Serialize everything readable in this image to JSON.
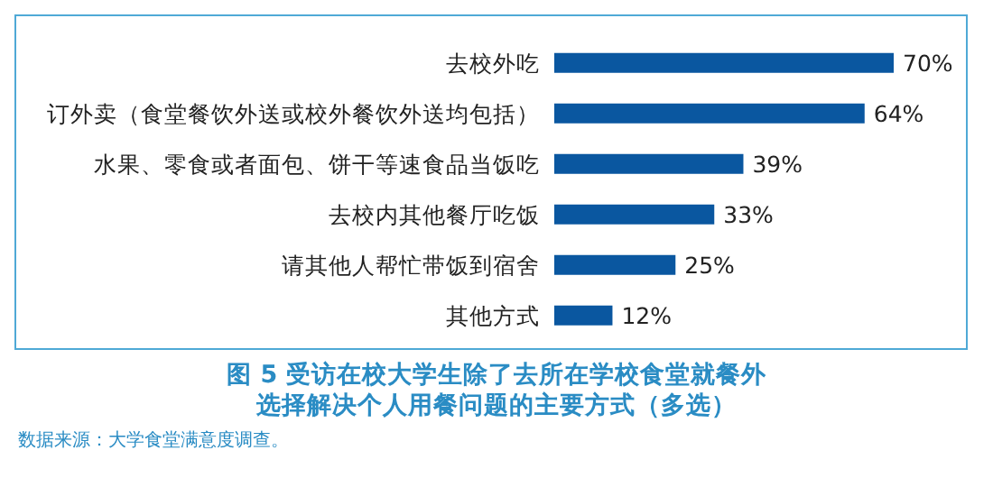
{
  "chart_data": {
    "type": "bar",
    "orientation": "horizontal",
    "title": "图 5  受访在校大学生除了去所在学校食堂就餐外选择解决个人用餐问题的主要方式（多选）",
    "categories": [
      "去校外吃",
      "订外卖（食堂餐饮外送或校外餐饮外送均包括）",
      "水果、零食或者面包、饼干等速食品当饭吃",
      "去校内其他餐厅吃饭",
      "请其他人帮忙带饭到宿舍",
      "其他方式"
    ],
    "values": [
      70,
      64,
      39,
      33,
      25,
      12
    ],
    "value_labels": [
      "70%",
      "64%",
      "39%",
      "33%",
      "25%",
      "12%"
    ],
    "color": "#0a57a0",
    "grid": false,
    "legend": false,
    "annotations": [
      "数据来源：大学食堂满意度调查。"
    ]
  }
}
